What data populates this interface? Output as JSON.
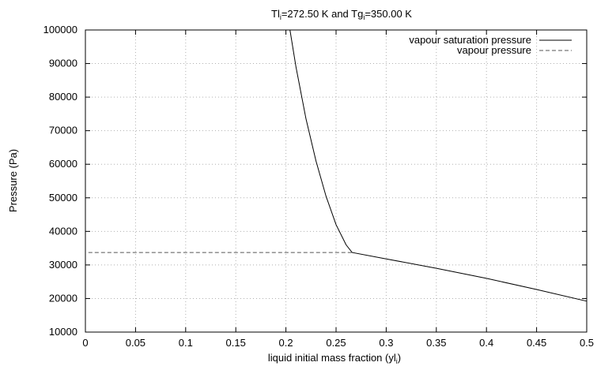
{
  "chart_data": {
    "type": "line",
    "title": {
      "part1": "Tl",
      "sub1": "i",
      "part2": "=272.50 K and Tg",
      "sub2": "i",
      "part3": "=350.00 K"
    },
    "xlabel": {
      "text": "liquid initial mass fraction (yl",
      "sub": "i",
      "end": ")"
    },
    "ylabel": "Pressure (Pa)",
    "xlim": [
      0,
      0.5
    ],
    "ylim": [
      10000,
      100000
    ],
    "grid": true,
    "legend_position": "top-right",
    "x_ticks": [
      {
        "value": 0,
        "label": "0"
      },
      {
        "value": 0.05,
        "label": "0.05"
      },
      {
        "value": 0.1,
        "label": "0.1"
      },
      {
        "value": 0.15,
        "label": "0.15"
      },
      {
        "value": 0.2,
        "label": "0.2"
      },
      {
        "value": 0.25,
        "label": "0.25"
      },
      {
        "value": 0.3,
        "label": "0.3"
      },
      {
        "value": 0.35,
        "label": "0.35"
      },
      {
        "value": 0.4,
        "label": "0.4"
      },
      {
        "value": 0.45,
        "label": "0.45"
      },
      {
        "value": 0.5,
        "label": "0.5"
      }
    ],
    "y_ticks": [
      {
        "value": 10000,
        "label": "10000"
      },
      {
        "value": 20000,
        "label": "20000"
      },
      {
        "value": 30000,
        "label": "30000"
      },
      {
        "value": 40000,
        "label": "40000"
      },
      {
        "value": 50000,
        "label": "50000"
      },
      {
        "value": 60000,
        "label": "60000"
      },
      {
        "value": 70000,
        "label": "70000"
      },
      {
        "value": 80000,
        "label": "80000"
      },
      {
        "value": 90000,
        "label": "90000"
      },
      {
        "value": 100000,
        "label": "100000"
      }
    ],
    "series": [
      {
        "name": "vapour saturation pressure",
        "style": "solid",
        "color": "#000000",
        "x": [
          0.204,
          0.21,
          0.22,
          0.23,
          0.24,
          0.25,
          0.26,
          0.266,
          0.3,
          0.35,
          0.4,
          0.45,
          0.5
        ],
        "y": [
          100000,
          89000,
          73500,
          61000,
          50500,
          42000,
          36000,
          33700,
          31800,
          29000,
          26000,
          22700,
          19200
        ]
      },
      {
        "name": "vapour pressure",
        "style": "dashed",
        "color": "#555555",
        "x": [
          0.003,
          0.266
        ],
        "y": [
          33700,
          33700
        ]
      }
    ]
  }
}
